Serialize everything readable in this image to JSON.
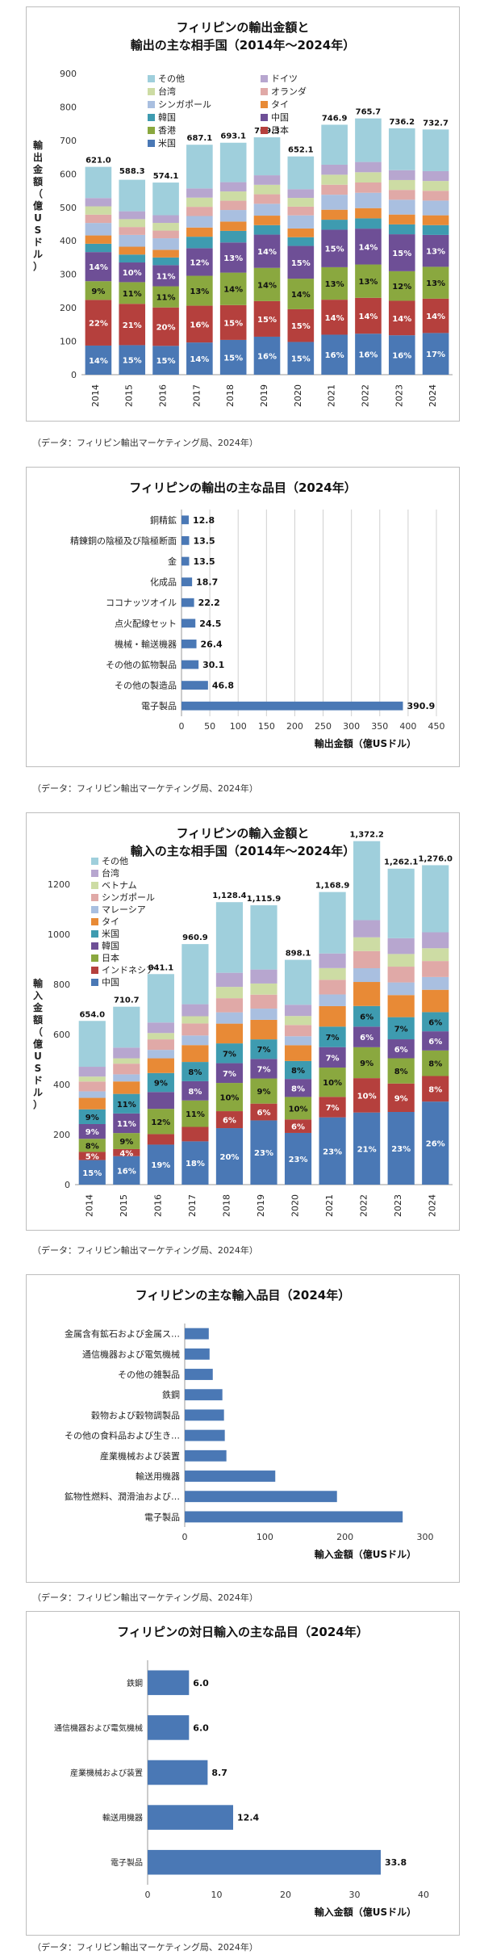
{
  "captions": {
    "c1": "（データ：フィリピン輸出マーケティング局、2024年）",
    "c2": "（データ：フィリピン輸出マーケティング局、2024年）",
    "c3": "（データ：フィリピン輸出マーケティング局、2024年）",
    "c4": "（データ：フィリピン輸出マーケティング局、2024年）",
    "c5": "（データ：フィリピン輸出マーケティング局、2024年）"
  },
  "chart_data": [
    {
      "type": "bar",
      "stacked": true,
      "title": "フィリピンの輸出金額と",
      "subtitle": "輸出の主な相手国（2014年～2024年）",
      "ylabel": "輸出金額（億USドル）",
      "xlabel": "",
      "ylim": [
        0,
        900
      ],
      "yticks": [
        0,
        100,
        200,
        300,
        400,
        500,
        600,
        700,
        800,
        900
      ],
      "categories": [
        "2014",
        "2015",
        "2016",
        "2017",
        "2018",
        "2019",
        "2020",
        "2021",
        "2022",
        "2023",
        "2024"
      ],
      "totals": [
        621.0,
        588.3,
        574.1,
        687.1,
        693.1,
        709.3,
        652.1,
        746.9,
        765.7,
        736.2,
        732.7
      ],
      "total_labels": [
        "621.0",
        "588.3",
        "574.1",
        "687.1",
        "693.1",
        "709.3",
        "652.1",
        "746.9",
        "765.7",
        "736.2",
        "732.7"
      ],
      "legend_position": "top-left",
      "grid": false,
      "series": [
        {
          "name": "米国",
          "color": "#4a78b5",
          "pct": [
            14,
            15,
            15,
            14,
            15,
            16,
            15,
            16,
            16,
            16,
            17
          ],
          "labels": [
            "14%",
            "15%",
            "15%",
            "14%",
            "15%",
            "16%",
            "15%",
            "16%",
            "16%",
            "16%",
            "17%"
          ]
        },
        {
          "name": "日本",
          "color": "#b5403d",
          "pct": [
            22,
            21,
            20,
            16,
            15,
            15,
            15,
            14,
            14,
            14,
            14
          ],
          "labels": [
            "22%",
            "21%",
            "20%",
            "16%",
            "15%",
            "15%",
            "15%",
            "14%",
            "14%",
            "14%",
            "14%"
          ]
        },
        {
          "name": "香港",
          "color": "#8aa83f",
          "pct": [
            9,
            11,
            11,
            13,
            14,
            14,
            14,
            13,
            13,
            12,
            13
          ],
          "labels": [
            "9%",
            "11%",
            "11%",
            "13%",
            "14%",
            "14%",
            "14%",
            "13%",
            "13%",
            "12%",
            "13%"
          ]
        },
        {
          "name": "中国",
          "color": "#6e4f96",
          "pct": [
            14,
            10,
            11,
            12,
            13,
            14,
            15,
            15,
            14,
            15,
            13
          ],
          "labels": [
            "14%",
            "10%",
            "11%",
            "12%",
            "13%",
            "14%",
            "15%",
            "15%",
            "14%",
            "15%",
            "13%"
          ]
        },
        {
          "name": "韓国",
          "color": "#3e9bb0",
          "pct": [
            4,
            4,
            4,
            5,
            5,
            4,
            4,
            4,
            4,
            4,
            4
          ]
        },
        {
          "name": "タイ",
          "color": "#e88a36",
          "pct": [
            4,
            4,
            4,
            4,
            4,
            4,
            4,
            4,
            4,
            4,
            4
          ]
        },
        {
          "name": "シンガポール",
          "color": "#a9bfe0",
          "pct": [
            6,
            6,
            6,
            5,
            5,
            5,
            6,
            6,
            6,
            6,
            6
          ]
        },
        {
          "name": "オランダ",
          "color": "#e0a9a7",
          "pct": [
            4,
            4,
            4,
            4,
            4,
            4,
            4,
            4,
            4,
            4,
            4
          ]
        },
        {
          "name": "台湾",
          "color": "#cddca4",
          "pct": [
            4,
            4,
            4,
            4,
            4,
            4,
            4,
            4,
            4,
            4,
            4
          ]
        },
        {
          "name": "ドイツ",
          "color": "#b7a6cf",
          "pct": [
            4,
            4,
            4,
            4,
            4,
            4,
            4,
            4,
            4,
            4,
            4
          ]
        },
        {
          "name": "その他",
          "color": "#9fcfdc",
          "pct": [
            15,
            16,
            17,
            19,
            17,
            16,
            15,
            16,
            17,
            17,
            17
          ]
        }
      ]
    },
    {
      "type": "bar",
      "orientation": "horizontal",
      "title": "フィリピンの輸出の主な品目（2024年）",
      "xlabel": "輸出金額（億USドル）",
      "xlim": [
        0,
        450
      ],
      "xticks": [
        0,
        50,
        100,
        150,
        200,
        250,
        300,
        350,
        400,
        450
      ],
      "grid": true,
      "color": "#4a78b5",
      "categories": [
        "電子製品",
        "その他の製造品",
        "その他の鉱物製品",
        "機械・輸送機器",
        "点火配線セット",
        "ココナッツオイル",
        "化成品",
        "金",
        "精錬銅の陰極及び陰極断面",
        "銅精鉱"
      ],
      "values": [
        390.9,
        46.8,
        30.1,
        26.4,
        24.5,
        22.2,
        18.7,
        13.5,
        13.5,
        12.8
      ],
      "value_labels": [
        "390.9",
        "46.8",
        "30.1",
        "26.4",
        "24.5",
        "22.2",
        "18.7",
        "13.5",
        "13.5",
        "12.8"
      ]
    },
    {
      "type": "bar",
      "stacked": true,
      "title": "フィリピンの輸入金額と",
      "subtitle": "輸入の主な相手国（2014年～2024年）",
      "ylabel": "輸入金額（億USドル）",
      "ylim": [
        0,
        1200
      ],
      "yticks": [
        0,
        200,
        400,
        600,
        800,
        1000,
        1200
      ],
      "categories": [
        "2014",
        "2015",
        "2016",
        "2017",
        "2018",
        "2019",
        "2020",
        "2021",
        "2022",
        "2023",
        "2024"
      ],
      "totals": [
        654.0,
        710.7,
        841.1,
        960.9,
        1128.4,
        1115.9,
        898.1,
        1168.9,
        1372.2,
        1262.1,
        1276.0
      ],
      "total_labels": [
        "654.0",
        "710.7",
        "841.1",
        "960.9",
        "1,128.4",
        "1,115.9",
        "898.1",
        "1,168.9",
        "1,372.2",
        "1,262.1",
        "1,276.0"
      ],
      "legend_position": "top-left",
      "grid": false,
      "series": [
        {
          "name": "中国",
          "color": "#4a78b5",
          "pct": [
            15,
            16,
            19,
            18,
            20,
            23,
            23,
            23,
            21,
            23,
            26
          ],
          "labels": [
            "15%",
            "16%",
            "19%",
            "18%",
            "20%",
            "23%",
            "23%",
            "23%",
            "21%",
            "23%",
            "26%"
          ]
        },
        {
          "name": "インドネシア",
          "color": "#b5403d",
          "pct": [
            5,
            4,
            5,
            6,
            6,
            6,
            6,
            7,
            10,
            9,
            8
          ],
          "labels": [
            "5%",
            "4%",
            "",
            "",
            "6%",
            "6%",
            "6%",
            "7%",
            "10%",
            "9%",
            "8%"
          ]
        },
        {
          "name": "日本",
          "color": "#8aa83f",
          "pct": [
            8,
            9,
            12,
            11,
            10,
            9,
            10,
            10,
            9,
            8,
            8
          ],
          "labels": [
            "8%",
            "9%",
            "12%",
            "11%",
            "10%",
            "9%",
            "10%",
            "10%",
            "9%",
            "8%",
            "8%"
          ]
        },
        {
          "name": "韓国",
          "color": "#6e4f96",
          "pct": [
            9,
            11,
            8,
            8,
            7,
            7,
            8,
            7,
            6,
            6,
            6
          ],
          "labels": [
            "9%",
            "11%",
            "",
            "8%",
            "7%",
            "7%",
            "8%",
            "7%",
            "6%",
            "6%",
            "6%"
          ]
        },
        {
          "name": "米国",
          "color": "#3e9bb0",
          "pct": [
            9,
            11,
            9,
            8,
            7,
            7,
            8,
            7,
            6,
            7,
            6
          ],
          "labels": [
            "9%",
            "11%",
            "9%",
            "8%",
            "7%",
            "7%",
            "8%",
            "7%",
            "6%",
            "7%",
            "6%"
          ]
        },
        {
          "name": "タイ",
          "color": "#e88a36",
          "pct": [
            7,
            7,
            7,
            7,
            7,
            7,
            7,
            7,
            7,
            7,
            7
          ]
        },
        {
          "name": "マレーシア",
          "color": "#a9bfe0",
          "pct": [
            4,
            4,
            4,
            4,
            4,
            4,
            4,
            4,
            4,
            4,
            4
          ]
        },
        {
          "name": "シンガポール",
          "color": "#e0a9a7",
          "pct": [
            6,
            6,
            5,
            5,
            5,
            5,
            5,
            5,
            5,
            5,
            5
          ]
        },
        {
          "name": "ベトナム",
          "color": "#cddca4",
          "pct": [
            3,
            3,
            3,
            3,
            4,
            4,
            4,
            4,
            4,
            4,
            4
          ]
        },
        {
          "name": "台湾",
          "color": "#b7a6cf",
          "pct": [
            6,
            6,
            5,
            5,
            5,
            5,
            5,
            5,
            5,
            5,
            5
          ]
        },
        {
          "name": "その他",
          "color": "#9fcfdc",
          "pct": [
            28,
            23,
            23,
            25,
            25,
            23,
            20,
            21,
            23,
            22,
            21
          ]
        }
      ]
    },
    {
      "type": "bar",
      "orientation": "horizontal",
      "title": "フィリピンの主な輸入品目（2024年）",
      "xlabel": "輸入金額（億USドル）",
      "xlim": [
        0,
        300
      ],
      "xticks": [
        0,
        100,
        200,
        300
      ],
      "grid": false,
      "color": "#4a78b5",
      "categories": [
        "電子製品",
        "鉱物性燃料、潤滑油および…",
        "輸送用機器",
        "産業機械および装置",
        "その他の食料品および生き…",
        "穀物および穀物調製品",
        "鉄鋼",
        "その他の雑製品",
        "通信機器および電気機械",
        "金属含有鉱石および金属ス…"
      ],
      "values": [
        272,
        190,
        113,
        52,
        50,
        49,
        47,
        35,
        31,
        30
      ]
    },
    {
      "type": "bar",
      "orientation": "horizontal",
      "title": "フィリピンの対日輸入の主な品目（2024年）",
      "xlabel": "輸入金額（億USドル）",
      "xlim": [
        0,
        40
      ],
      "xticks": [
        0,
        10,
        20,
        30,
        40
      ],
      "grid": false,
      "color": "#4a78b5",
      "categories": [
        "電子製品",
        "輸送用機器",
        "産業機械および装置",
        "通信機器および電気機械",
        "鉄鋼"
      ],
      "values": [
        33.8,
        12.4,
        8.7,
        6.0,
        6.0
      ],
      "value_labels": [
        "33.8",
        "12.4",
        "8.7",
        "6.0",
        "6.0"
      ]
    }
  ]
}
